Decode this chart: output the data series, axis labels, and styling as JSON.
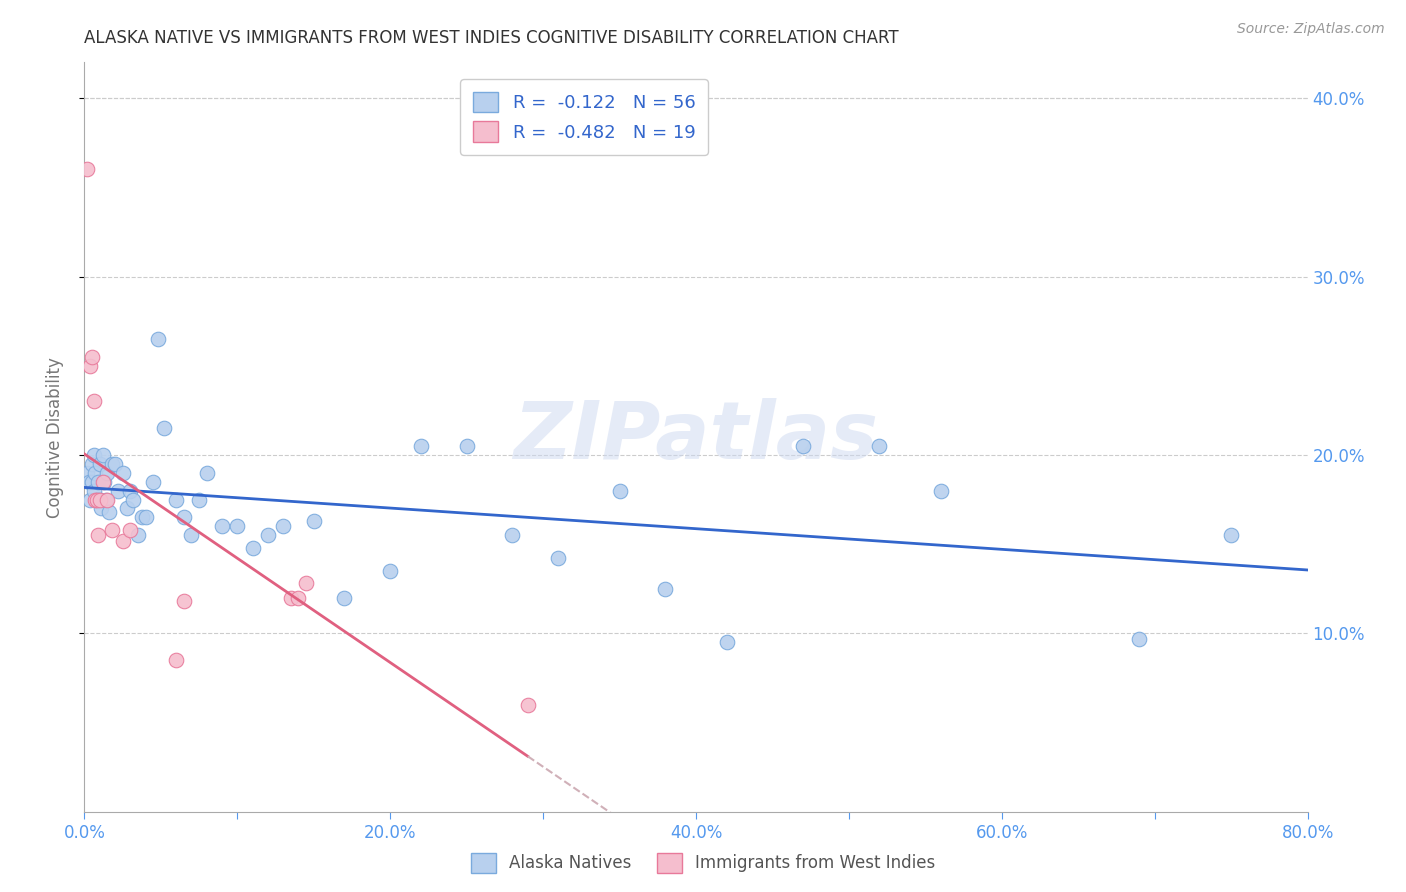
{
  "title": "ALASKA NATIVE VS IMMIGRANTS FROM WEST INDIES COGNITIVE DISABILITY CORRELATION CHART",
  "source": "Source: ZipAtlas.com",
  "ylabel": "Cognitive Disability",
  "xlim": [
    0.0,
    0.8
  ],
  "ylim": [
    0.0,
    0.42
  ],
  "background_color": "#ffffff",
  "grid_color": "#cccccc",
  "alaska_color": "#b8d0ee",
  "alaska_edge_color": "#7aaadd",
  "wi_color": "#f5bece",
  "wi_edge_color": "#e8799a",
  "alaska_R": -0.122,
  "alaska_N": 56,
  "wi_R": -0.482,
  "wi_N": 19,
  "alaska_trend_color": "#3366cc",
  "wi_trend_color": "#e06080",
  "wi_trend_dashed_color": "#d0b0b8",
  "watermark": "ZIPatlas",
  "legend_label_alaska": "Alaska Natives",
  "legend_label_wi": "Immigrants from West Indies",
  "alaska_x": [
    0.002,
    0.003,
    0.004,
    0.005,
    0.005,
    0.006,
    0.006,
    0.007,
    0.008,
    0.009,
    0.01,
    0.01,
    0.011,
    0.012,
    0.013,
    0.014,
    0.015,
    0.016,
    0.018,
    0.02,
    0.022,
    0.025,
    0.028,
    0.03,
    0.032,
    0.035,
    0.038,
    0.04,
    0.045,
    0.048,
    0.052,
    0.06,
    0.065,
    0.07,
    0.075,
    0.08,
    0.09,
    0.1,
    0.11,
    0.12,
    0.13,
    0.15,
    0.17,
    0.2,
    0.22,
    0.25,
    0.28,
    0.31,
    0.35,
    0.38,
    0.42,
    0.47,
    0.52,
    0.56,
    0.69,
    0.75
  ],
  "alaska_y": [
    0.19,
    0.185,
    0.175,
    0.195,
    0.185,
    0.2,
    0.18,
    0.19,
    0.175,
    0.185,
    0.195,
    0.175,
    0.17,
    0.2,
    0.185,
    0.175,
    0.19,
    0.168,
    0.195,
    0.195,
    0.18,
    0.19,
    0.17,
    0.18,
    0.175,
    0.155,
    0.165,
    0.165,
    0.185,
    0.265,
    0.215,
    0.175,
    0.165,
    0.155,
    0.175,
    0.19,
    0.16,
    0.16,
    0.148,
    0.155,
    0.16,
    0.163,
    0.12,
    0.135,
    0.205,
    0.205,
    0.155,
    0.142,
    0.18,
    0.125,
    0.095,
    0.205,
    0.205,
    0.18,
    0.097,
    0.155
  ],
  "wi_x": [
    0.002,
    0.004,
    0.005,
    0.006,
    0.007,
    0.008,
    0.009,
    0.01,
    0.012,
    0.015,
    0.018,
    0.025,
    0.03,
    0.06,
    0.065,
    0.135,
    0.14,
    0.145,
    0.29
  ],
  "wi_y": [
    0.36,
    0.25,
    0.255,
    0.23,
    0.175,
    0.175,
    0.155,
    0.175,
    0.185,
    0.175,
    0.158,
    0.152,
    0.158,
    0.085,
    0.118,
    0.12,
    0.12,
    0.128,
    0.06
  ]
}
